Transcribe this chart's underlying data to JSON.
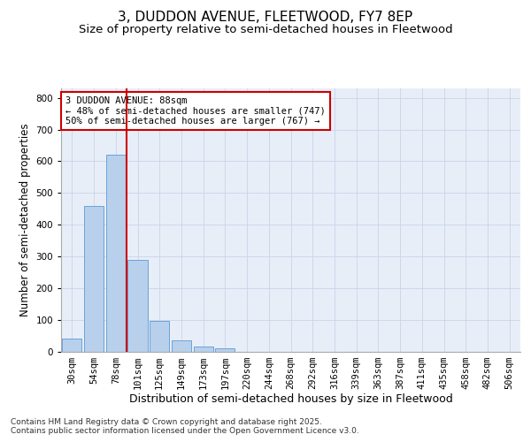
{
  "title": "3, DUDDON AVENUE, FLEETWOOD, FY7 8EP",
  "subtitle": "Size of property relative to semi-detached houses in Fleetwood",
  "xlabel": "Distribution of semi-detached houses by size in Fleetwood",
  "ylabel": "Number of semi-detached properties",
  "bins": [
    "30sqm",
    "54sqm",
    "78sqm",
    "101sqm",
    "125sqm",
    "149sqm",
    "173sqm",
    "197sqm",
    "220sqm",
    "244sqm",
    "268sqm",
    "292sqm",
    "316sqm",
    "339sqm",
    "363sqm",
    "387sqm",
    "411sqm",
    "435sqm",
    "458sqm",
    "482sqm",
    "506sqm"
  ],
  "values": [
    40,
    460,
    620,
    290,
    95,
    35,
    15,
    10,
    0,
    0,
    0,
    0,
    0,
    0,
    0,
    0,
    0,
    0,
    0,
    0,
    0
  ],
  "bar_color": "#b8d0eb",
  "bar_edge_color": "#5b9bd5",
  "grid_color": "#c8d4e8",
  "background_color": "#e8eef8",
  "red_line_x": 2.5,
  "annotation_text": "3 DUDDON AVENUE: 88sqm\n← 48% of semi-detached houses are smaller (747)\n50% of semi-detached houses are larger (767) →",
  "annotation_box_color": "#ffffff",
  "annotation_box_edge": "#cc0000",
  "red_line_color": "#cc0000",
  "ylim": [
    0,
    830
  ],
  "yticks": [
    0,
    100,
    200,
    300,
    400,
    500,
    600,
    700,
    800
  ],
  "footnote": "Contains HM Land Registry data © Crown copyright and database right 2025.\nContains public sector information licensed under the Open Government Licence v3.0.",
  "title_fontsize": 11,
  "subtitle_fontsize": 9.5,
  "tick_fontsize": 7.5,
  "xlabel_fontsize": 9,
  "ylabel_fontsize": 8.5,
  "footnote_fontsize": 6.5
}
